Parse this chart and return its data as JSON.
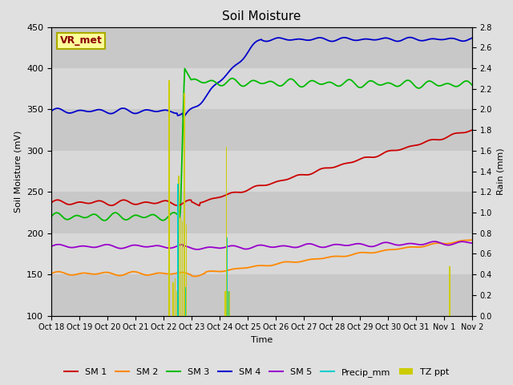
{
  "title": "Soil Moisture",
  "xlabel": "Time",
  "ylabel_left": "Soil Moisture (mV)",
  "ylabel_right": "Rain (mm)",
  "ylim_left": [
    100,
    450
  ],
  "ylim_right": [
    0.0,
    2.8
  ],
  "bg_color": "#e0e0e0",
  "plot_bg_color": "#d0d0d0",
  "annotation_label": "VR_met",
  "annotation_color": "#8b0000",
  "annotation_bg": "#ffff99",
  "annotation_border": "#aaaa00",
  "colors": {
    "SM1": "#cc0000",
    "SM2": "#ff8800",
    "SM3": "#00bb00",
    "SM4": "#0000cc",
    "SM5": "#9900cc",
    "Precip": "#00cccc",
    "TZ": "#cccc00"
  },
  "xtick_labels": [
    "Oct 18",
    "Oct 19",
    "Oct 20",
    "Oct 21",
    "Oct 22",
    "Oct 23",
    "Oct 24",
    "Oct 25",
    "Oct 26",
    "Oct 27",
    "Oct 28",
    "Oct 29",
    "Oct 30",
    "Oct 31",
    "Nov 1",
    "Nov 2"
  ],
  "yticks_left": [
    100,
    150,
    200,
    250,
    300,
    350,
    400,
    450
  ],
  "yticks_right": [
    0.0,
    0.2,
    0.4,
    0.6,
    0.8,
    1.0,
    1.2,
    1.4,
    1.6,
    1.8,
    2.0,
    2.2,
    2.4,
    2.6,
    2.8
  ],
  "band_colors": [
    "#c8c8c8",
    "#d8d8d8"
  ]
}
